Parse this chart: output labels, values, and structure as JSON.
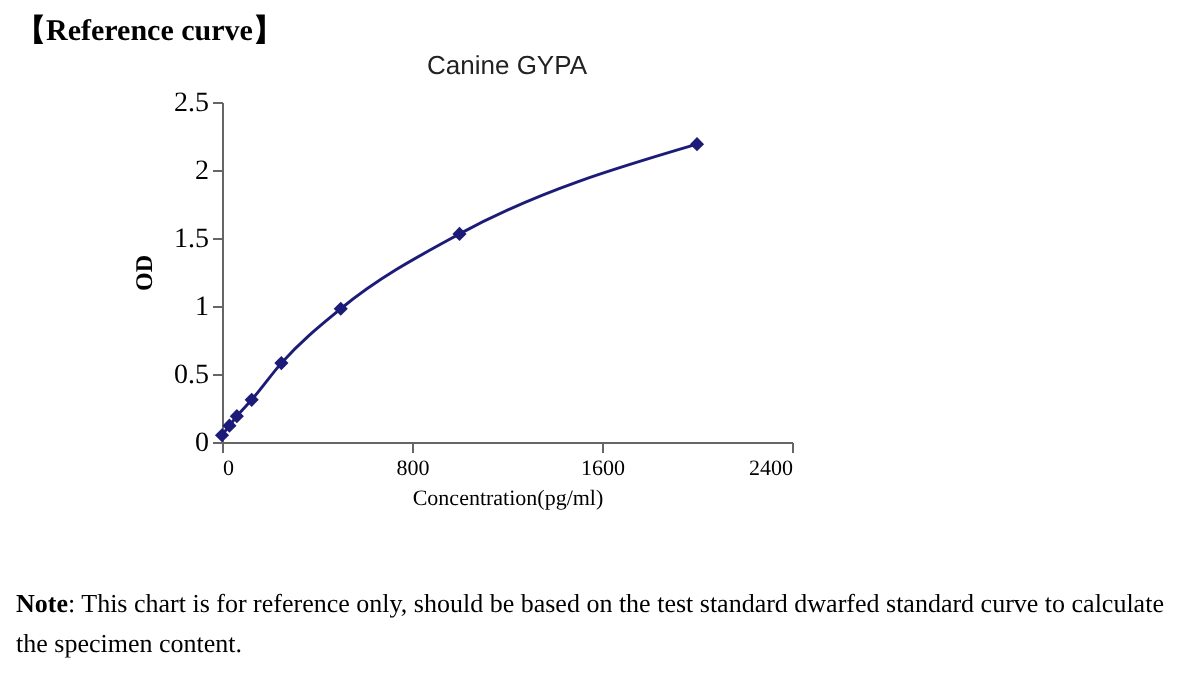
{
  "chart_data": {
    "type": "line",
    "title": "Canine GYPA",
    "xlabel": "Concentration(pg/ml)",
    "ylabel": "OD",
    "annotations": [
      "【Reference curve】",
      "Note: This chart is for reference only, should be based on the test standard dwarfed standard curve to calculate the specimen content."
    ],
    "x": [
      0,
      31.25,
      62.5,
      125,
      250,
      500,
      1000,
      2000
    ],
    "series": [
      {
        "color": "#1c1c78",
        "values": [
          0.05,
          0.12,
          0.19,
          0.31,
          0.58,
          0.98,
          1.53,
          2.19
        ]
      }
    ],
    "xlim": [
      0,
      2400
    ],
    "xticks": [
      0,
      800,
      1600,
      2400
    ],
    "ylim": [
      0,
      2.5
    ],
    "yticks": [
      0,
      0.5,
      1,
      1.5,
      2,
      2.5
    ],
    "grid": false,
    "legend": false,
    "marker": "diamond",
    "line_style": "solid"
  }
}
